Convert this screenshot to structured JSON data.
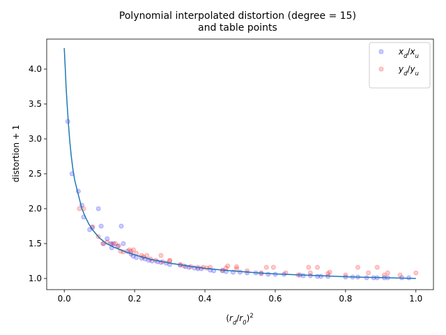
{
  "chart_data": {
    "type": "scatter",
    "title": [
      "Polynomial interpolated distortion (degree = 15)",
      "and table points"
    ],
    "xlabel": "(r_d/r_0)^2",
    "ylabel": "distortion + 1",
    "xlim": [
      -0.05,
      1.05
    ],
    "ylim": [
      0.84,
      4.43
    ],
    "xticks": [
      0.0,
      0.2,
      0.4,
      0.6,
      0.8,
      1.0
    ],
    "xtick_labels": [
      "0.0",
      "0.2",
      "0.4",
      "0.6",
      "0.8",
      "1.0"
    ],
    "yticks": [
      1.0,
      1.5,
      2.0,
      2.5,
      3.0,
      3.5,
      4.0
    ],
    "ytick_labels": [
      "1.0",
      "1.5",
      "2.0",
      "2.5",
      "3.0",
      "3.5",
      "4.0"
    ],
    "grid": false,
    "legend_position": "top-right",
    "series": [
      {
        "name": "x_d/x_u",
        "kind": "scatter",
        "color": "#0000ff",
        "points": [
          [
            0.01,
            3.25
          ],
          [
            0.022,
            2.5
          ],
          [
            0.04,
            2.25
          ],
          [
            0.05,
            2.05
          ],
          [
            0.055,
            1.88
          ],
          [
            0.072,
            1.7
          ],
          [
            0.08,
            1.73
          ],
          [
            0.097,
            2.0
          ],
          [
            0.105,
            1.75
          ],
          [
            0.112,
            1.5
          ],
          [
            0.122,
            1.57
          ],
          [
            0.132,
            1.5
          ],
          [
            0.135,
            1.44
          ],
          [
            0.14,
            1.5
          ],
          [
            0.152,
            1.46
          ],
          [
            0.162,
            1.75
          ],
          [
            0.168,
            1.5
          ],
          [
            0.18,
            1.39
          ],
          [
            0.19,
            1.35
          ],
          [
            0.196,
            1.32
          ],
          [
            0.205,
            1.3
          ],
          [
            0.22,
            1.29
          ],
          [
            0.23,
            1.28
          ],
          [
            0.24,
            1.26
          ],
          [
            0.25,
            1.25
          ],
          [
            0.265,
            1.24
          ],
          [
            0.275,
            1.23
          ],
          [
            0.29,
            1.22
          ],
          [
            0.3,
            1.2
          ],
          [
            0.33,
            1.19
          ],
          [
            0.345,
            1.17
          ],
          [
            0.355,
            1.16
          ],
          [
            0.37,
            1.15
          ],
          [
            0.38,
            1.14
          ],
          [
            0.39,
            1.14
          ],
          [
            0.415,
            1.12
          ],
          [
            0.425,
            1.11
          ],
          [
            0.45,
            1.11
          ],
          [
            0.46,
            1.1
          ],
          [
            0.48,
            1.09
          ],
          [
            0.5,
            1.09
          ],
          [
            0.52,
            1.08
          ],
          [
            0.545,
            1.08
          ],
          [
            0.56,
            1.07
          ],
          [
            0.58,
            1.06
          ],
          [
            0.6,
            1.06
          ],
          [
            0.625,
            1.06
          ],
          [
            0.67,
            1.05
          ],
          [
            0.68,
            1.04
          ],
          [
            0.7,
            1.04
          ],
          [
            0.72,
            1.03
          ],
          [
            0.73,
            1.03
          ],
          [
            0.75,
            1.03
          ],
          [
            0.8,
            1.02
          ],
          [
            0.82,
            1.02
          ],
          [
            0.835,
            1.02
          ],
          [
            0.86,
            1.01
          ],
          [
            0.88,
            1.01
          ],
          [
            0.89,
            1.01
          ],
          [
            0.91,
            1.01
          ],
          [
            0.92,
            1.01
          ],
          [
            0.96,
            1.01
          ],
          [
            0.98,
            1.01
          ]
        ]
      },
      {
        "name": "y_d/y_u",
        "kind": "scatter",
        "color": "#ff0000",
        "points": [
          [
            0.043,
            2.0
          ],
          [
            0.055,
            2.0
          ],
          [
            0.08,
            1.74
          ],
          [
            0.097,
            1.6
          ],
          [
            0.11,
            1.5
          ],
          [
            0.122,
            1.52
          ],
          [
            0.135,
            1.49
          ],
          [
            0.145,
            1.5
          ],
          [
            0.155,
            1.47
          ],
          [
            0.16,
            1.39
          ],
          [
            0.168,
            1.38
          ],
          [
            0.185,
            1.41
          ],
          [
            0.19,
            1.39
          ],
          [
            0.197,
            1.41
          ],
          [
            0.205,
            1.36
          ],
          [
            0.22,
            1.33
          ],
          [
            0.225,
            1.31
          ],
          [
            0.235,
            1.33
          ],
          [
            0.245,
            1.28
          ],
          [
            0.26,
            1.26
          ],
          [
            0.275,
            1.33
          ],
          [
            0.28,
            1.24
          ],
          [
            0.3,
            1.26
          ],
          [
            0.3,
            1.25
          ],
          [
            0.33,
            1.2
          ],
          [
            0.34,
            1.18
          ],
          [
            0.36,
            1.17
          ],
          [
            0.38,
            1.16
          ],
          [
            0.395,
            1.16
          ],
          [
            0.405,
            1.15
          ],
          [
            0.415,
            1.16
          ],
          [
            0.45,
            1.12
          ],
          [
            0.46,
            1.15
          ],
          [
            0.465,
            1.18
          ],
          [
            0.49,
            1.14
          ],
          [
            0.49,
            1.17
          ],
          [
            0.52,
            1.11
          ],
          [
            0.56,
            1.08
          ],
          [
            0.575,
            1.16
          ],
          [
            0.595,
            1.16
          ],
          [
            0.63,
            1.08
          ],
          [
            0.665,
            1.05
          ],
          [
            0.695,
            1.16
          ],
          [
            0.7,
            1.08
          ],
          [
            0.72,
            1.16
          ],
          [
            0.75,
            1.07
          ],
          [
            0.755,
            1.09
          ],
          [
            0.8,
            1.05
          ],
          [
            0.835,
            1.16
          ],
          [
            0.865,
            1.08
          ],
          [
            0.89,
            1.16
          ],
          [
            0.91,
            1.05
          ],
          [
            0.92,
            1.08
          ],
          [
            0.955,
            1.05
          ],
          [
            1.0,
            1.08
          ]
        ]
      },
      {
        "name": "",
        "kind": "line",
        "color": "#1f77b4",
        "points": [
          [
            0.0,
            4.3
          ],
          [
            0.003,
            4.0
          ],
          [
            0.005,
            3.75
          ],
          [
            0.008,
            3.5
          ],
          [
            0.012,
            3.2
          ],
          [
            0.016,
            2.95
          ],
          [
            0.02,
            2.75
          ],
          [
            0.025,
            2.55
          ],
          [
            0.03,
            2.4
          ],
          [
            0.04,
            2.2
          ],
          [
            0.05,
            2.0
          ],
          [
            0.06,
            1.88
          ],
          [
            0.07,
            1.78
          ],
          [
            0.08,
            1.7
          ],
          [
            0.09,
            1.64
          ],
          [
            0.1,
            1.58
          ],
          [
            0.12,
            1.5
          ],
          [
            0.14,
            1.45
          ],
          [
            0.16,
            1.41
          ],
          [
            0.18,
            1.37
          ],
          [
            0.2,
            1.34
          ],
          [
            0.22,
            1.31
          ],
          [
            0.25,
            1.27
          ],
          [
            0.28,
            1.24
          ],
          [
            0.3,
            1.22
          ],
          [
            0.35,
            1.18
          ],
          [
            0.4,
            1.145
          ],
          [
            0.45,
            1.12
          ],
          [
            0.5,
            1.1
          ],
          [
            0.55,
            1.08
          ],
          [
            0.6,
            1.065
          ],
          [
            0.65,
            1.055
          ],
          [
            0.7,
            1.045
          ],
          [
            0.75,
            1.035
          ],
          [
            0.8,
            1.025
          ],
          [
            0.85,
            1.018
          ],
          [
            0.9,
            1.012
          ],
          [
            0.95,
            1.006
          ],
          [
            1.0,
            1.0
          ]
        ]
      }
    ]
  }
}
